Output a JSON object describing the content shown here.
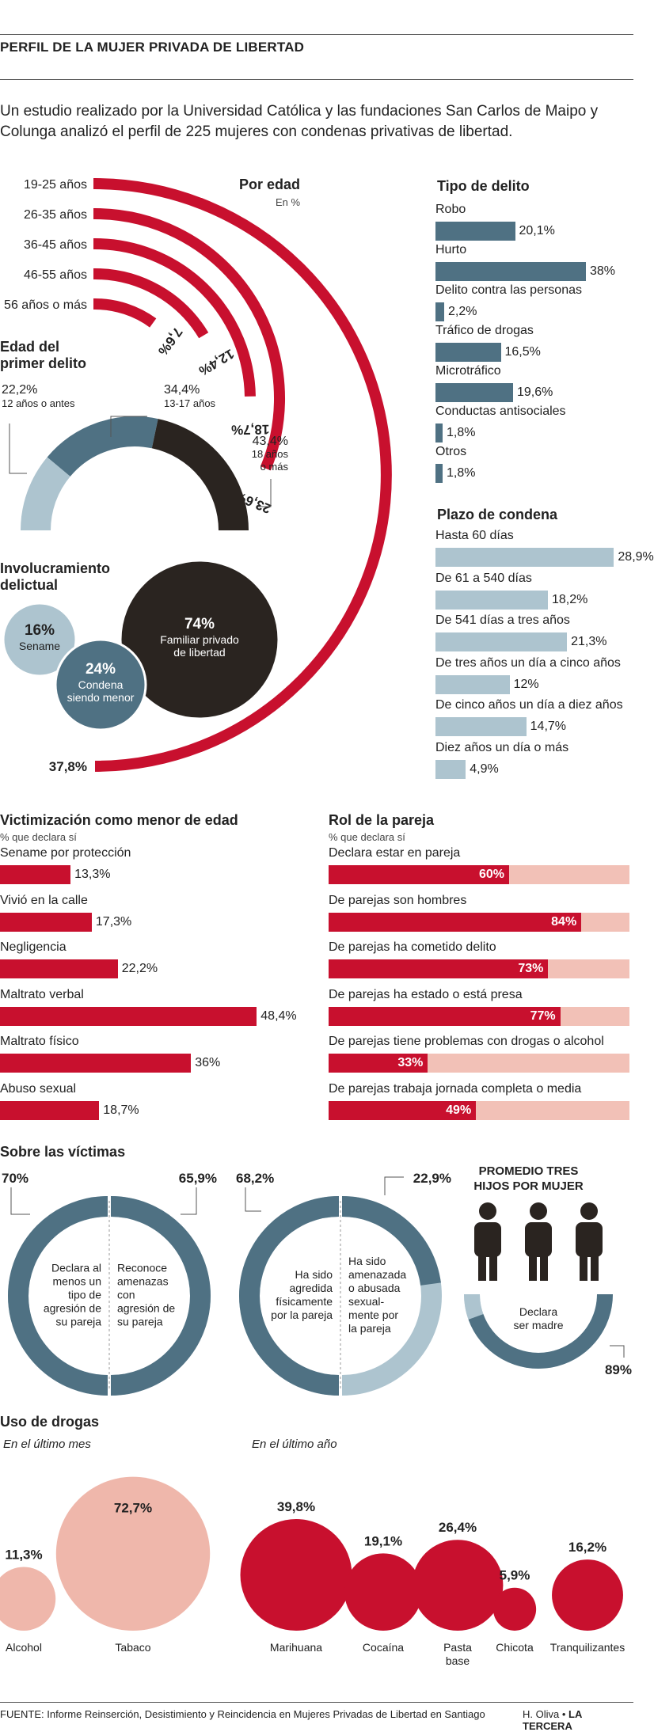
{
  "title": "PERFIL DE LA MUJER PRIVADA DE LIBERTAD",
  "intro": "Un estudio realizado por la Universidad Católica y las fundaciones San Carlos de Maipo y Colunga analizó el perfil de 225 mujeres con condenas privativas de libertad.",
  "colors": {
    "red": "#c8102e",
    "blue": "#4f7183",
    "light_blue": "#adc4cf",
    "dark": "#2a2420",
    "pink": "#efb7ab",
    "light_pink": "#f2c1b7"
  },
  "age": {
    "title": "Por edad",
    "subtitle": "En %",
    "chart_data": {
      "type": "radial-bar",
      "categories": [
        "19-25 años",
        "26-35 años",
        "36-45 años",
        "46-55 años",
        "56 años o más"
      ],
      "values": [
        37.8,
        23.6,
        18.7,
        12.4,
        7.6
      ],
      "value_labels": [
        "37,8%",
        "23,6%",
        "18,7%",
        "12,4%",
        "7,6%"
      ]
    }
  },
  "first_crime": {
    "title_line1": "Edad del",
    "title_line2": "primer delito",
    "chart_data": {
      "type": "semi-donut",
      "segments": [
        {
          "value": 22.2,
          "pct": "22,2%",
          "label": "12 años o antes"
        },
        {
          "value": 34.4,
          "pct": "34,4%",
          "label": "13-17 años"
        },
        {
          "value": 43.4,
          "pct": "43,4%",
          "label_lines": [
            "18 años",
            "o más"
          ]
        }
      ]
    }
  },
  "involvement": {
    "title_line1": "Involucramiento",
    "title_line2": "delictual",
    "chart_data": {
      "type": "bubble",
      "bubbles": [
        {
          "pct": "74%",
          "value": 74,
          "lines": [
            "Familiar privado",
            "de libertad"
          ]
        },
        {
          "pct": "16%",
          "value": 16,
          "lines": [
            "Sename"
          ]
        },
        {
          "pct": "24%",
          "value": 24,
          "lines": [
            "Condena",
            "siendo menor"
          ]
        }
      ]
    }
  },
  "crime_type": {
    "title": "Tipo de delito",
    "chart_data": {
      "type": "bar",
      "categories": [
        "Robo",
        "Hurto",
        "Delito contra las personas",
        "Tráfico de drogas",
        "Microtráfico",
        "Conductas antisociales",
        "Otros"
      ],
      "values": [
        20.1,
        38,
        2.2,
        16.5,
        19.6,
        1.8,
        1.8
      ],
      "value_labels": [
        "20,1%",
        "38%",
        "2,2%",
        "16,5%",
        "19,6%",
        "1,8%",
        "1,8%"
      ]
    }
  },
  "sentence": {
    "title": "Plazo de condena",
    "chart_data": {
      "type": "bar",
      "categories": [
        "Hasta 60 días",
        "De 61 a 540 días",
        "De 541 días a tres años",
        "De tres años un día a cinco años",
        "De cinco años un día a diez años",
        "Diez años un día o más"
      ],
      "values": [
        28.9,
        18.2,
        21.3,
        12,
        14.7,
        4.9
      ],
      "value_labels": [
        "28,9%",
        "18,2%",
        "21,3%",
        "12%",
        "14,7%",
        "4,9%"
      ]
    }
  },
  "victimization": {
    "title": "Victimización como menor de edad",
    "subtitle": "% que declara sí",
    "chart_data": {
      "type": "bar",
      "categories": [
        "Sename por protección",
        "Vivió en la calle",
        "Negligencia",
        "Maltrato verbal",
        "Maltrato físico",
        "Abuso sexual"
      ],
      "values": [
        13.3,
        17.3,
        22.2,
        48.4,
        36,
        18.7
      ],
      "value_labels": [
        "13,3%",
        "17,3%",
        "22,2%",
        "48,4%",
        "36%",
        "18,7%"
      ]
    }
  },
  "partner": {
    "title": "Rol de la pareja",
    "subtitle": "% que declara sí",
    "chart_data": {
      "type": "bar",
      "categories": [
        "Declara estar en pareja",
        "De parejas son hombres",
        "De parejas ha cometido delito",
        "De parejas ha estado o está presa",
        "De parejas tiene problemas con drogas o alcohol",
        "De parejas trabaja jornada completa o media"
      ],
      "values": [
        60,
        84,
        73,
        77,
        33,
        49
      ],
      "value_labels": [
        "60%",
        "84%",
        "73%",
        "77%",
        "33%",
        "49%"
      ]
    }
  },
  "victims": {
    "title": "Sobre las víctimas",
    "donuts": [
      {
        "pct": "70%",
        "value": 70,
        "lines": [
          "Declara al",
          "menos un",
          "tipo de",
          "agresión de",
          "su pareja"
        ]
      },
      {
        "pct": "65,9%",
        "value": 65.9,
        "lines": [
          "Reconoce",
          "amenazas",
          "con",
          "agresión de",
          "su pareja"
        ]
      },
      {
        "pct": "68,2%",
        "value": 68.2,
        "lines": [
          "Ha sido",
          "agredida",
          "físicamente",
          "por la pareja"
        ]
      },
      {
        "pct": "22,9%",
        "value": 22.9,
        "lines": [
          "Ha sido",
          "amenazada",
          "o abusada",
          "sexual-",
          "mente por",
          "la pareja"
        ]
      }
    ],
    "children": {
      "title_line1": "PROMEDIO TRES",
      "title_line2": "HIJOS POR MUJER",
      "label_line1": "Declara",
      "label_line2": "ser madre",
      "pct": "89%",
      "value": 89,
      "icon": "person-icon"
    }
  },
  "drugs": {
    "title": "Uso de drogas",
    "month_label": "En el último mes",
    "year_label": "En el último año",
    "chart_data": [
      {
        "type": "bubble",
        "period": "En el último mes",
        "categories": [
          "Alcohol",
          "Tabaco"
        ],
        "values": [
          11.3,
          72.7
        ],
        "value_labels": [
          "11,3%",
          "72,7%"
        ]
      },
      {
        "type": "bubble",
        "period": "En el último año",
        "categories": [
          "Marihuana",
          "Cocaína",
          "Pasta base",
          "Chicota",
          "Tranquilizantes"
        ],
        "values": [
          39.8,
          19.1,
          26.4,
          5.9,
          16.2
        ],
        "value_labels": [
          "39,8%",
          "19,1%",
          "26,4%",
          "5,9%",
          "16,2%"
        ]
      }
    ],
    "pasta_line1": "Pasta",
    "pasta_line2": "base"
  },
  "footer": {
    "source": "FUENTE: Informe Reinserción, Desistimiento y Reincidencia en Mujeres Privadas de Libertad en Santiago",
    "credit": "H. Oliva •",
    "brand": "LA TERCERA"
  }
}
